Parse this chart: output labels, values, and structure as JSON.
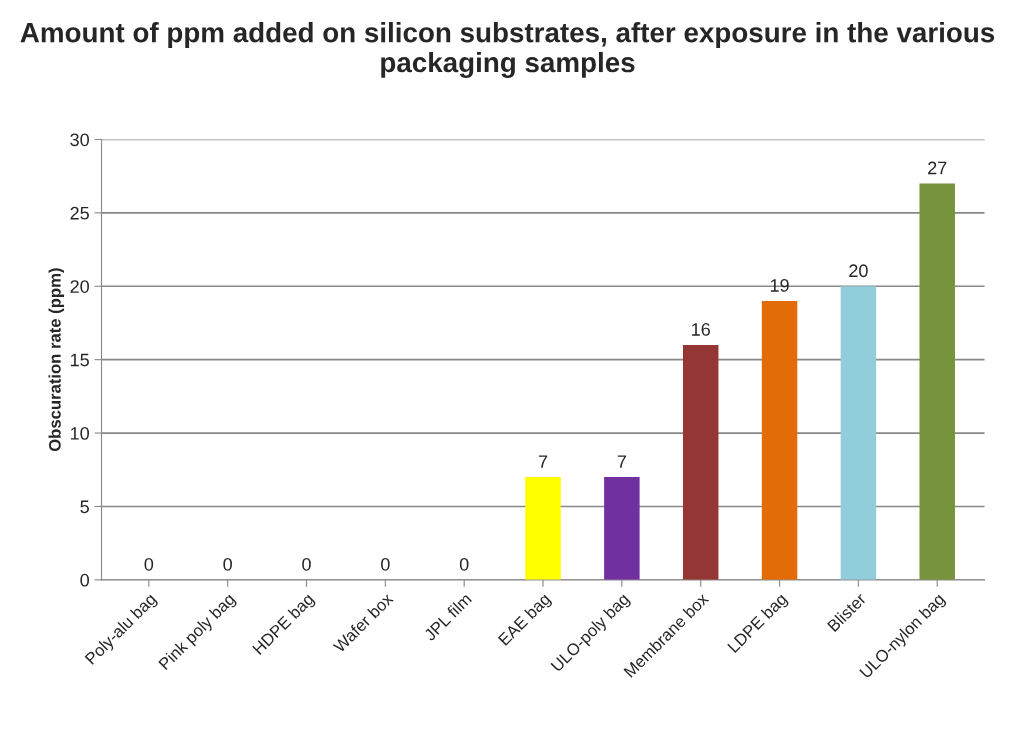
{
  "chart_data": {
    "type": "bar",
    "title": "Amount of ppm added on silicon substrates, after exposure in the various packaging samples",
    "ylabel": "Obscuration rate (ppm)",
    "categories": [
      "Poly-alu bag",
      "Pink poly bag",
      "HDPE bag",
      "Wafer box",
      "JPL film",
      "EAE bag",
      "ULO-poly bag",
      "Membrane box",
      "LDPE bag",
      "Blister",
      "ULO-nylon bag"
    ],
    "values": [
      0,
      0,
      0,
      0,
      0,
      7,
      7,
      16,
      19,
      20,
      27
    ],
    "colors": [
      "#595959",
      "#c0185f",
      "#00874a",
      "#c00000",
      "#000000",
      "#ffff00",
      "#7030a0",
      "#943634",
      "#e36c09",
      "#92cddc",
      "#77933c"
    ],
    "ylim": [
      0,
      30
    ],
    "yticks": [
      0,
      5,
      10,
      15,
      20,
      25,
      30
    ],
    "grid": "y",
    "data_labels": true
  }
}
